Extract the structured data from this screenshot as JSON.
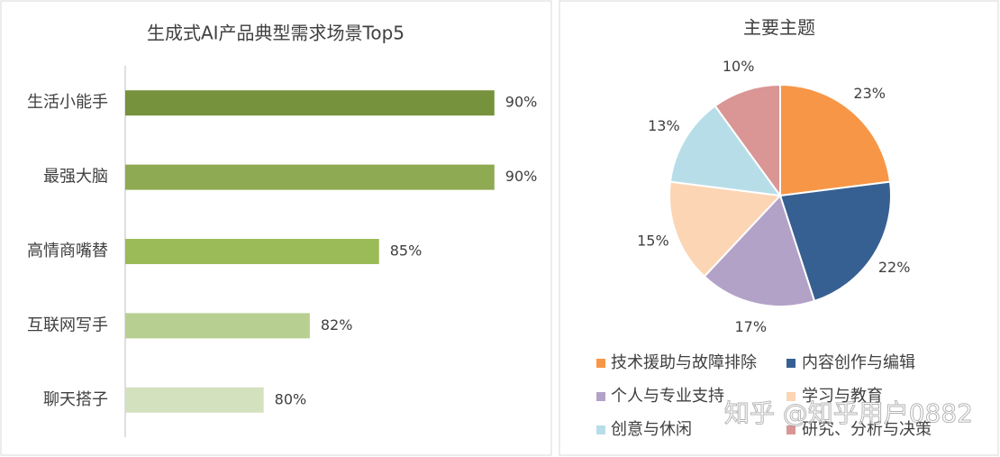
{
  "chart_data": [
    {
      "type": "bar",
      "orientation": "horizontal",
      "title": "生成式AI产品典型需求场景Top5",
      "categories": [
        "生活小能手",
        "最强大脑",
        "高情商嘴替",
        "互联网写手",
        "聊天搭子"
      ],
      "values": [
        90,
        90,
        85,
        82,
        80
      ],
      "value_labels": [
        "90%",
        "90%",
        "85%",
        "82%",
        "80%"
      ],
      "colors": [
        "#76923c",
        "#8eaa52",
        "#9bbb59",
        "#b8cf92",
        "#d3e1bf"
      ],
      "xlim": [
        74,
        92
      ]
    },
    {
      "type": "pie",
      "title": "主要主题",
      "categories": [
        "技术援助与故障排除",
        "内容创作与编辑",
        "个人与专业支持",
        "学习与教育",
        "创意与休闲",
        "研究、分析与决策"
      ],
      "values": [
        23,
        22,
        17,
        15,
        13,
        10
      ],
      "value_labels": [
        "23%",
        "22%",
        "17%",
        "15%",
        "13%",
        "10%"
      ],
      "colors": [
        "#f79646",
        "#376092",
        "#b3a2c7",
        "#fcd5b5",
        "#b7dee8",
        "#d99694"
      ]
    }
  ],
  "watermark": "知乎 @知乎用户0882"
}
